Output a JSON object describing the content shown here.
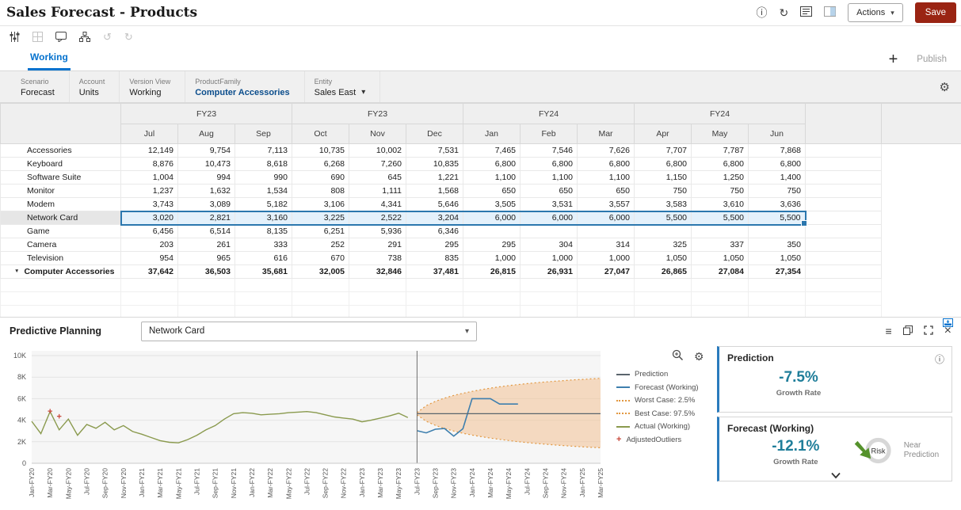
{
  "header": {
    "title": "Sales Forecast - Products",
    "actions_label": "Actions",
    "save_label": "Save"
  },
  "tabs": {
    "active": "Working",
    "publish": "Publish"
  },
  "icons": {
    "info": "ⓘ",
    "refresh": "↻",
    "dropdown": "▾",
    "plus": "+",
    "menu": "≡",
    "close": "×",
    "undo": "↺",
    "redo": "↻",
    "gear": "⚙",
    "triangle": "▼"
  },
  "pov": {
    "tiles": [
      {
        "dimension": "Scenario",
        "member": "Forecast"
      },
      {
        "dimension": "Account",
        "member": "Units"
      },
      {
        "dimension": "Version View",
        "member": "Working"
      },
      {
        "dimension": "ProductFamily",
        "member": "Computer Accessories",
        "emphasis": true
      },
      {
        "dimension": "Entity",
        "member": "Sales East",
        "dropdown": true
      }
    ]
  },
  "grid": {
    "year_groups": [
      {
        "label": "FY23",
        "span": 3
      },
      {
        "label": "FY23",
        "span": 3
      },
      {
        "label": "FY24",
        "span": 3
      },
      {
        "label": "FY24",
        "span": 3
      }
    ],
    "months": [
      "Jul",
      "Aug",
      "Sep",
      "Oct",
      "Nov",
      "Dec",
      "Jan",
      "Feb",
      "Mar",
      "Apr",
      "May",
      "Jun"
    ],
    "rows": [
      {
        "label": "Accessories",
        "values": [
          "12,149",
          "9,754",
          "7,113",
          "10,735",
          "10,002",
          "7,531",
          "7,465",
          "7,546",
          "7,626",
          "7,707",
          "7,787",
          "7,868"
        ]
      },
      {
        "label": "Keyboard",
        "values": [
          "8,876",
          "10,473",
          "8,618",
          "6,268",
          "7,260",
          "10,835",
          "6,800",
          "6,800",
          "6,800",
          "6,800",
          "6,800",
          "6,800"
        ]
      },
      {
        "label": "Software Suite",
        "values": [
          "1,004",
          "994",
          "990",
          "690",
          "645",
          "1,221",
          "1,100",
          "1,100",
          "1,100",
          "1,150",
          "1,250",
          "1,400"
        ]
      },
      {
        "label": "Monitor",
        "values": [
          "1,237",
          "1,632",
          "1,534",
          "808",
          "1,111",
          "1,568",
          "650",
          "650",
          "650",
          "750",
          "750",
          "750"
        ]
      },
      {
        "label": "Modem",
        "values": [
          "3,743",
          "3,089",
          "5,182",
          "3,106",
          "4,341",
          "5,646",
          "3,505",
          "3,531",
          "3,557",
          "3,583",
          "3,610",
          "3,636"
        ]
      },
      {
        "label": "Network Card",
        "selected": true,
        "values": [
          "3,020",
          "2,821",
          "3,160",
          "3,225",
          "2,522",
          "3,204",
          "6,000",
          "6,000",
          "6,000",
          "5,500",
          "5,500",
          "5,500"
        ]
      },
      {
        "label": "Game",
        "values": [
          "6,456",
          "6,514",
          "8,135",
          "6,251",
          "5,936",
          "6,346",
          "",
          "",
          "",
          "",
          "",
          ""
        ]
      },
      {
        "label": "Camera",
        "values": [
          "203",
          "261",
          "333",
          "252",
          "291",
          "295",
          "295",
          "304",
          "314",
          "325",
          "337",
          "350"
        ]
      },
      {
        "label": "Television",
        "values": [
          "954",
          "965",
          "616",
          "670",
          "738",
          "835",
          "1,000",
          "1,000",
          "1,000",
          "1,050",
          "1,050",
          "1,050"
        ]
      },
      {
        "label": "Computer Accessories",
        "total": true,
        "values": [
          "37,642",
          "36,503",
          "35,681",
          "32,005",
          "32,846",
          "37,481",
          "26,815",
          "26,931",
          "27,047",
          "26,865",
          "27,084",
          "27,354"
        ]
      }
    ]
  },
  "predictive": {
    "title": "Predictive Planning",
    "selector_value": "Network Card",
    "legend": [
      {
        "label": "Prediction",
        "swatch": "line",
        "color": "#5a646d"
      },
      {
        "label": "Forecast (Working)",
        "swatch": "line",
        "color": "#3e7fae"
      },
      {
        "label": "Worst Case: 2.5%",
        "swatch": "dotted",
        "color": "#e2973f"
      },
      {
        "label": "Best Case: 97.5%",
        "swatch": "dotted",
        "color": "#e2973f"
      },
      {
        "label": "Actual (Working)",
        "swatch": "line",
        "color": "#8a9a4e"
      },
      {
        "label": "AdjustedOutliers",
        "swatch": "plus",
        "color": "#c8473a"
      }
    ]
  },
  "cards": {
    "prediction": {
      "title": "Prediction",
      "value": "-7.5%",
      "sublabel": "Growth Rate"
    },
    "forecast": {
      "title": "Forecast (Working)",
      "value": "-12.1%",
      "sublabel": "Growth Rate",
      "risk_label": "Risk",
      "note": "Near Prediction"
    }
  },
  "chart_data": {
    "type": "line",
    "ylim": [
      0,
      10000
    ],
    "months_total": 63,
    "divider_index": 42,
    "y_ticks": [
      {
        "value": 0,
        "label": "0"
      },
      {
        "value": 2000,
        "label": "2K"
      },
      {
        "value": 4000,
        "label": "4K"
      },
      {
        "value": 6000,
        "label": "6K"
      },
      {
        "value": 8000,
        "label": "8K"
      },
      {
        "value": 10000,
        "label": "10K"
      }
    ],
    "x_tick_labels": [
      "Jan-FY20",
      "Mar-FY20",
      "May-FY20",
      "Jul-FY20",
      "Sep-FY20",
      "Nov-FY20",
      "Jan-FY21",
      "Mar-FY21",
      "May-FY21",
      "Jul-FY21",
      "Sep-FY21",
      "Nov-FY21",
      "Jan-FY22",
      "Mar-FY22",
      "May-FY22",
      "Jul-FY22",
      "Sep-FY22",
      "Nov-FY22",
      "Jan-FY23",
      "Mar-FY23",
      "May-FY23",
      "Jul-FY23",
      "Sep-FY23",
      "Nov-FY23",
      "Jan-FY24",
      "Mar-FY24",
      "May-FY24",
      "Jul-FY24",
      "Sep-FY24",
      "Nov-FY24",
      "Jan-FY25",
      "Mar-FY25"
    ],
    "series": [
      {
        "name": "Actual (Working)",
        "color": "#8a9a4e",
        "width": 1.4,
        "start": 0,
        "values": [
          3900,
          2750,
          4800,
          3100,
          4100,
          2600,
          3600,
          3250,
          3800,
          3100,
          3500,
          2950,
          2700,
          2400,
          2100,
          1950,
          1900,
          2200,
          2600,
          3100,
          3500,
          4100,
          4600,
          4700,
          4650,
          4500,
          4550,
          4600,
          4700,
          4750,
          4800,
          4700,
          4500,
          4300,
          4200,
          4100,
          3850,
          4000,
          4200,
          4400,
          4650,
          4250
        ]
      },
      {
        "name": "Forecast (Working)",
        "color": "#3e7fae",
        "width": 1.6,
        "start": 42,
        "values": [
          3020,
          2821,
          3160,
          3225,
          2522,
          3204,
          6000,
          6000,
          6000,
          5500,
          5500,
          5500
        ]
      },
      {
        "name": "Prediction",
        "color": "#5a646d",
        "width": 1.2,
        "start": 42,
        "values": [
          4600,
          4600,
          4600,
          4600,
          4600,
          4600,
          4600,
          4600,
          4600,
          4600,
          4600,
          4600,
          4600,
          4600,
          4600,
          4600,
          4600,
          4600,
          4600,
          4600,
          4600
        ]
      }
    ],
    "band": {
      "fill": "#f3c193",
      "opacity": 0.55,
      "edge_color": "#e2973f",
      "best": [
        4700,
        5350,
        5750,
        6050,
        6300,
        6500,
        6680,
        6840,
        6980,
        7100,
        7210,
        7310,
        7400,
        7480,
        7550,
        7620,
        7680,
        7740,
        7790,
        7840,
        7890
      ],
      "worst": [
        4500,
        3900,
        3520,
        3230,
        2990,
        2790,
        2620,
        2470,
        2340,
        2220,
        2110,
        2010,
        1920,
        1840,
        1770,
        1700,
        1640,
        1580,
        1530,
        1480,
        1440
      ]
    },
    "outliers": {
      "name": "AdjustedOutliers",
      "color": "#c8473a",
      "points": [
        {
          "x": 2,
          "y": 4800
        },
        {
          "x": 3,
          "y": 4350
        }
      ]
    }
  }
}
